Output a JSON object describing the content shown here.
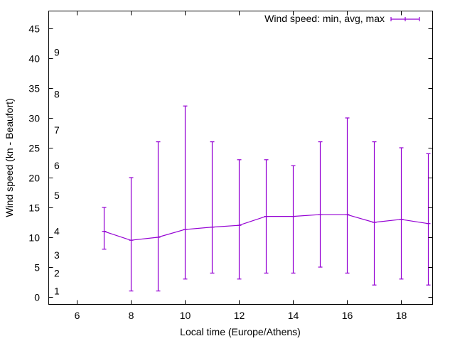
{
  "chart_data": {
    "type": "line",
    "title": "",
    "xlabel": "Local time (Europe/Athens)",
    "ylabel": "Wind speed (kn - Beaufort)",
    "xlim": [
      5,
      19.2
    ],
    "ylim": [
      -1,
      47
    ],
    "x_ticks": [
      6,
      8,
      10,
      12,
      14,
      16,
      18
    ],
    "y_ticks": [
      0,
      5,
      10,
      15,
      20,
      25,
      30,
      35,
      40,
      45
    ],
    "beaufort_labels": [
      {
        "label": "1",
        "y": 1
      },
      {
        "label": "2",
        "y": 4
      },
      {
        "label": "3",
        "y": 7
      },
      {
        "label": "4",
        "y": 11
      },
      {
        "label": "5",
        "y": 17
      },
      {
        "label": "6",
        "y": 22
      },
      {
        "label": "7",
        "y": 28
      },
      {
        "label": "8",
        "y": 34
      },
      {
        "label": "9",
        "y": 41
      }
    ],
    "grid": false,
    "legend_position": "top-right",
    "series": [
      {
        "name": "Wind speed: min, avg, max",
        "color": "#9400d3",
        "style": "errorlines",
        "x": [
          7,
          8,
          9,
          10,
          11,
          12,
          13,
          14,
          15,
          16,
          17,
          18,
          19
        ],
        "min": [
          8,
          1,
          1,
          3,
          4,
          3,
          4,
          4,
          5,
          4,
          2,
          3,
          2
        ],
        "avg": [
          11,
          9.5,
          10,
          11.3,
          11.7,
          12,
          13.5,
          13.5,
          13.8,
          13.8,
          12.5,
          13,
          12.3
        ],
        "max": [
          15,
          20,
          26,
          32,
          26,
          23,
          23,
          22,
          26,
          30,
          26,
          25,
          24
        ]
      }
    ]
  }
}
